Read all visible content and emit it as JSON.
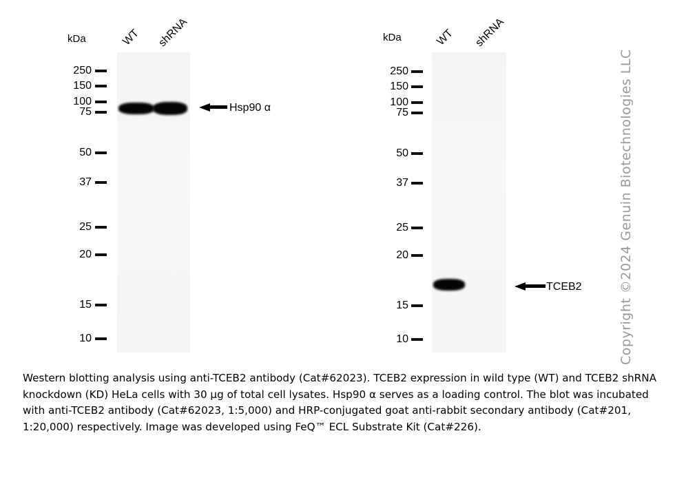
{
  "left_blot": {
    "unit_label": "kDa",
    "lanes": [
      "WT",
      "shRNA"
    ],
    "markers": [
      "250",
      "150",
      "100",
      "75",
      "50",
      "37",
      "25",
      "20",
      "15",
      "10"
    ],
    "target_label": "Hsp90 α"
  },
  "right_blot": {
    "unit_label": "kDa",
    "lanes": [
      "WT",
      "shRNA"
    ],
    "markers": [
      "250",
      "150",
      "100",
      "75",
      "50",
      "37",
      "25",
      "20",
      "15",
      "10"
    ],
    "target_label": "TCEB2"
  },
  "watermark": "Copyright ©2024 Genuin Biotechnologies LLC",
  "caption": "Western blotting analysis using anti-TCEB2 antibody (Cat#62023). TCEB2 expression in wild type (WT) and TCEB2 shRNA knockdown (KD) HeLa cells with 30 µg of total cell lysates. Hsp90 α serves as a loading control. The blot was incubated with anti-TCEB2 antibody (Cat#62023, 1:5,000) and HRP-conjugated goat anti-rabbit secondary antibody (Cat#201, 1:20,000) respectively. Image was developed using FeQ™ ECL Substrate Kit (Cat#226)."
}
